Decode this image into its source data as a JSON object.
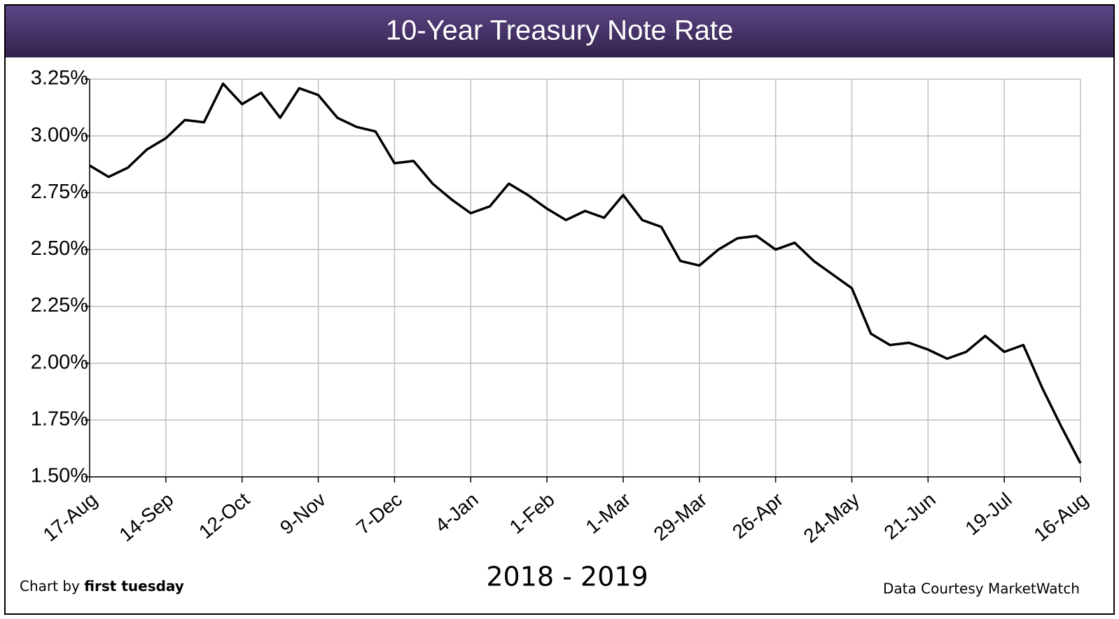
{
  "chart_data": {
    "type": "line",
    "title": "10-Year Treasury Note Rate",
    "x_label": "2018 - 2019",
    "credit_label": "Chart by",
    "credit_name": "first tuesday",
    "source": "Data Courtesy MarketWatch",
    "categories": [
      "17-Aug",
      null,
      null,
      null,
      "14-Sep",
      null,
      null,
      null,
      "12-Oct",
      null,
      null,
      null,
      "9-Nov",
      null,
      null,
      null,
      "7-Dec",
      null,
      null,
      null,
      "4-Jan",
      null,
      null,
      null,
      "1-Feb",
      null,
      null,
      null,
      "1-Mar",
      null,
      null,
      null,
      "29-Mar",
      null,
      null,
      null,
      "26-Apr",
      null,
      null,
      null,
      "24-May",
      null,
      null,
      null,
      "21-Jun",
      null,
      null,
      null,
      "19-Jul",
      null,
      null,
      null,
      "16-Aug"
    ],
    "series": [
      {
        "name": "10-Year Treasury Note Rate",
        "color": "#000000",
        "values": [
          2.87,
          2.82,
          2.86,
          2.94,
          2.99,
          3.07,
          3.06,
          3.23,
          3.14,
          3.19,
          3.08,
          3.21,
          3.18,
          3.08,
          3.04,
          3.02,
          2.88,
          2.89,
          2.79,
          2.72,
          2.66,
          2.69,
          2.79,
          2.74,
          2.68,
          2.63,
          2.67,
          2.64,
          2.74,
          2.63,
          2.6,
          2.45,
          2.43,
          2.5,
          2.55,
          2.56,
          2.5,
          2.53,
          2.45,
          2.39,
          2.33,
          2.13,
          2.08,
          2.09,
          2.06,
          2.02,
          2.05,
          2.12,
          2.05,
          2.08,
          1.89,
          1.72,
          1.56
        ]
      }
    ],
    "ylim": [
      1.5,
      3.25
    ],
    "yticks": [
      {
        "value": 1.5,
        "label": "1.50%"
      },
      {
        "value": 1.75,
        "label": "1.75%"
      },
      {
        "value": 2.0,
        "label": "2.00%"
      },
      {
        "value": 2.25,
        "label": "2.25%"
      },
      {
        "value": 2.5,
        "label": "2.50%"
      },
      {
        "value": 2.75,
        "label": "2.75%"
      },
      {
        "value": 3.0,
        "label": "3.00%"
      },
      {
        "value": 3.25,
        "label": "3.25%"
      }
    ],
    "grid": true,
    "title_color": "#4f3a70"
  }
}
